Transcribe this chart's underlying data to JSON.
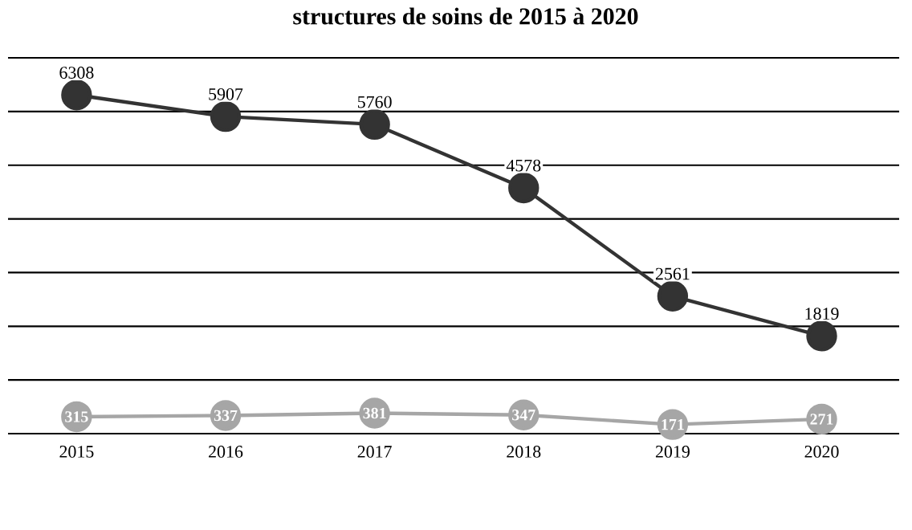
{
  "chart_data": {
    "type": "line",
    "title": "structures de soins de 2015 à 2020",
    "categories": [
      "2015",
      "2016",
      "2017",
      "2018",
      "2019",
      "2020"
    ],
    "series": [
      {
        "color": "#333333",
        "values": [
          6308,
          5907,
          5760,
          4578,
          2561,
          1819
        ]
      },
      {
        "color": "#a6a6a6",
        "values": [
          315,
          337,
          381,
          347,
          171,
          271
        ]
      }
    ],
    "ylim": [
      0,
      7000
    ],
    "yticks": [
      0,
      1000,
      2000,
      3000,
      4000,
      5000,
      6000,
      7000
    ],
    "tick_labels": "x",
    "grid": "y",
    "marker": "circle",
    "line_style": "solid",
    "data_labels": true
  }
}
